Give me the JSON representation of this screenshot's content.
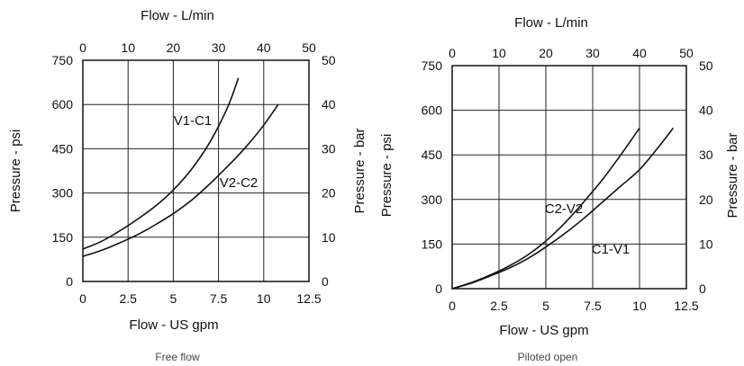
{
  "chart_data": [
    {
      "type": "line",
      "caption": "Free flow",
      "x_bottom": {
        "label": "Flow - US gpm",
        "ticks": [
          "0",
          "2.5",
          "5",
          "7.5",
          "10",
          "12.5"
        ],
        "range": [
          0,
          12.5
        ]
      },
      "x_top": {
        "label": "Flow - L/min",
        "ticks": [
          "0",
          "10",
          "20",
          "30",
          "40",
          "50"
        ],
        "range": [
          0,
          50
        ]
      },
      "y_left": {
        "label": "Pressure - psi",
        "ticks": [
          "0",
          "150",
          "300",
          "450",
          "600",
          "750"
        ],
        "range": [
          0,
          750
        ]
      },
      "y_right": {
        "label": "Pressure - bar",
        "ticks": [
          "0",
          "10",
          "20",
          "30",
          "40",
          "50"
        ],
        "range": [
          0,
          50
        ]
      },
      "grid": true,
      "series": [
        {
          "name": "V1-C1",
          "x": [
            0,
            1,
            2,
            3,
            4,
            5,
            6,
            7,
            8,
            8.6
          ],
          "y": [
            110,
            135,
            170,
            210,
            255,
            310,
            380,
            470,
            590,
            690
          ]
        },
        {
          "name": "V2-C2",
          "x": [
            0,
            1,
            2,
            3,
            4,
            5,
            6,
            7,
            8,
            9,
            10,
            10.8
          ],
          "y": [
            85,
            105,
            130,
            158,
            192,
            230,
            275,
            330,
            390,
            455,
            530,
            600
          ]
        }
      ]
    },
    {
      "type": "line",
      "caption": "Piloted open",
      "x_bottom": {
        "label": "Flow - US gpm",
        "ticks": [
          "0",
          "2.5",
          "5",
          "7.5",
          "10",
          "12.5"
        ],
        "range": [
          0,
          12.5
        ]
      },
      "x_top": {
        "label": "Flow - L/min",
        "ticks": [
          "0",
          "10",
          "20",
          "30",
          "40",
          "50"
        ],
        "range": [
          0,
          50
        ]
      },
      "y_left": {
        "label": "Pressure - psi",
        "ticks": [
          "0",
          "150",
          "300",
          "450",
          "600",
          "750"
        ],
        "range": [
          0,
          750
        ]
      },
      "y_right": {
        "label": "Pressure - bar",
        "ticks": [
          "0",
          "10",
          "20",
          "30",
          "40",
          "50"
        ],
        "range": [
          0,
          50
        ]
      },
      "grid": true,
      "series": [
        {
          "name": "C2-V2",
          "x": [
            0,
            1,
            2,
            3,
            4,
            5,
            6,
            7,
            8,
            9,
            10
          ],
          "y": [
            0,
            20,
            45,
            75,
            112,
            160,
            220,
            290,
            365,
            450,
            540
          ]
        },
        {
          "name": "C1-V1",
          "x": [
            0,
            1,
            2,
            3,
            4,
            5,
            6,
            7,
            8,
            9,
            10,
            11,
            11.8
          ],
          "y": [
            0,
            18,
            42,
            68,
            100,
            140,
            185,
            235,
            290,
            345,
            400,
            475,
            540
          ]
        }
      ]
    }
  ]
}
